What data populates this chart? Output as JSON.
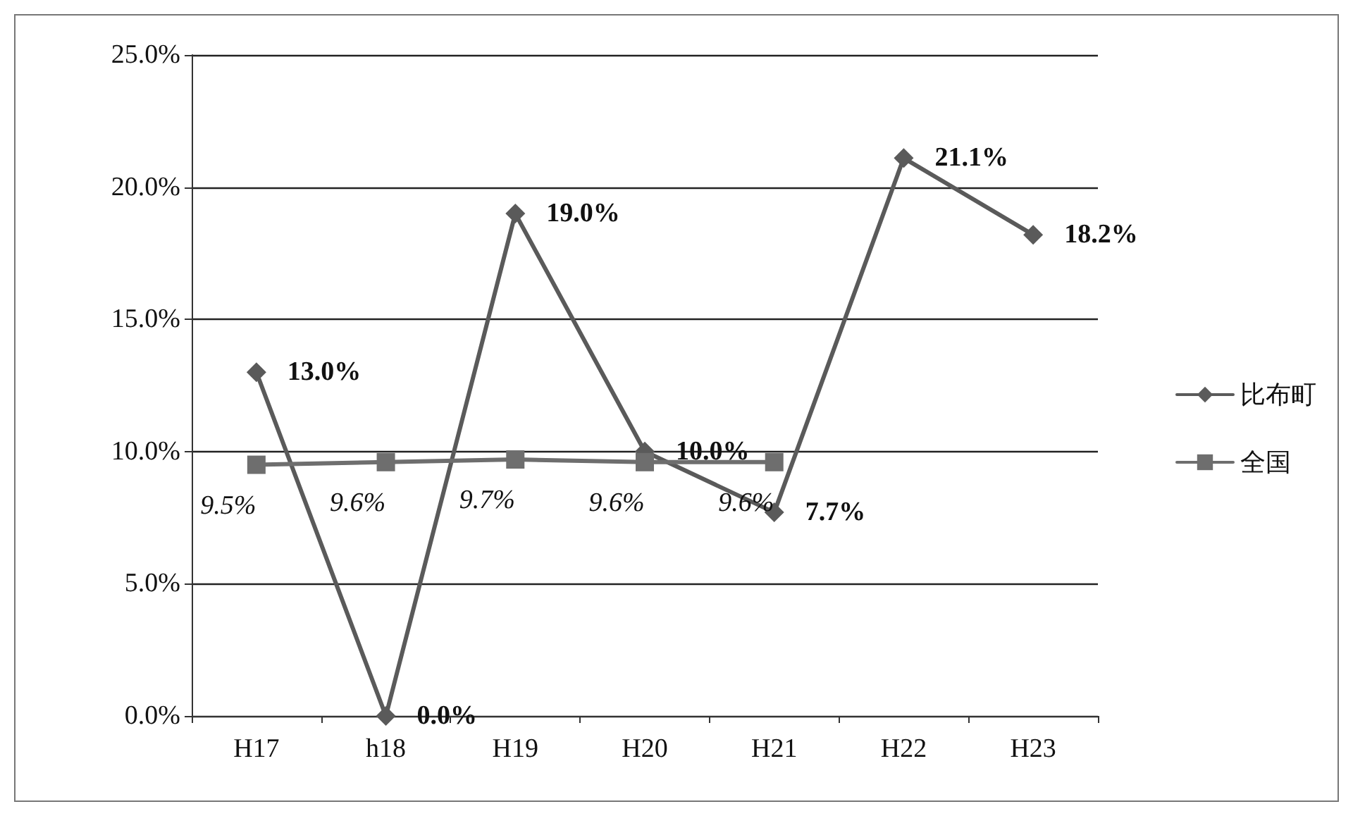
{
  "chart_data": {
    "type": "line",
    "categories": [
      "H17",
      "h18",
      "H19",
      "H20",
      "H21",
      "H22",
      "H23"
    ],
    "series": [
      {
        "name": "比布町",
        "color": "#5a5a5a",
        "marker": "diamond",
        "values": [
          13.0,
          0.0,
          19.0,
          10.0,
          7.7,
          21.1,
          18.2
        ],
        "value_labels": [
          "13.0%",
          "0.0%",
          "19.0%",
          "10.0%",
          "7.7%",
          "21.1%",
          "18.2%"
        ]
      },
      {
        "name": "全国",
        "color": "#6e6e6e",
        "marker": "square",
        "values": [
          9.5,
          9.6,
          9.7,
          9.6,
          9.6,
          null,
          null
        ],
        "value_labels": [
          "9.5%",
          "9.6%",
          "9.7%",
          "9.6%",
          "9.6%",
          null,
          null
        ]
      }
    ],
    "ylim": [
      0,
      25
    ],
    "yticks": [
      {
        "value": 0,
        "label": "0.0%"
      },
      {
        "value": 5,
        "label": "5.0%"
      },
      {
        "value": 10,
        "label": "10.0%"
      },
      {
        "value": 15,
        "label": "15.0%"
      },
      {
        "value": 20,
        "label": "20.0%"
      },
      {
        "value": 25,
        "label": "25.0%"
      }
    ],
    "grid": "y",
    "legend": "right",
    "line_style": "solid"
  }
}
